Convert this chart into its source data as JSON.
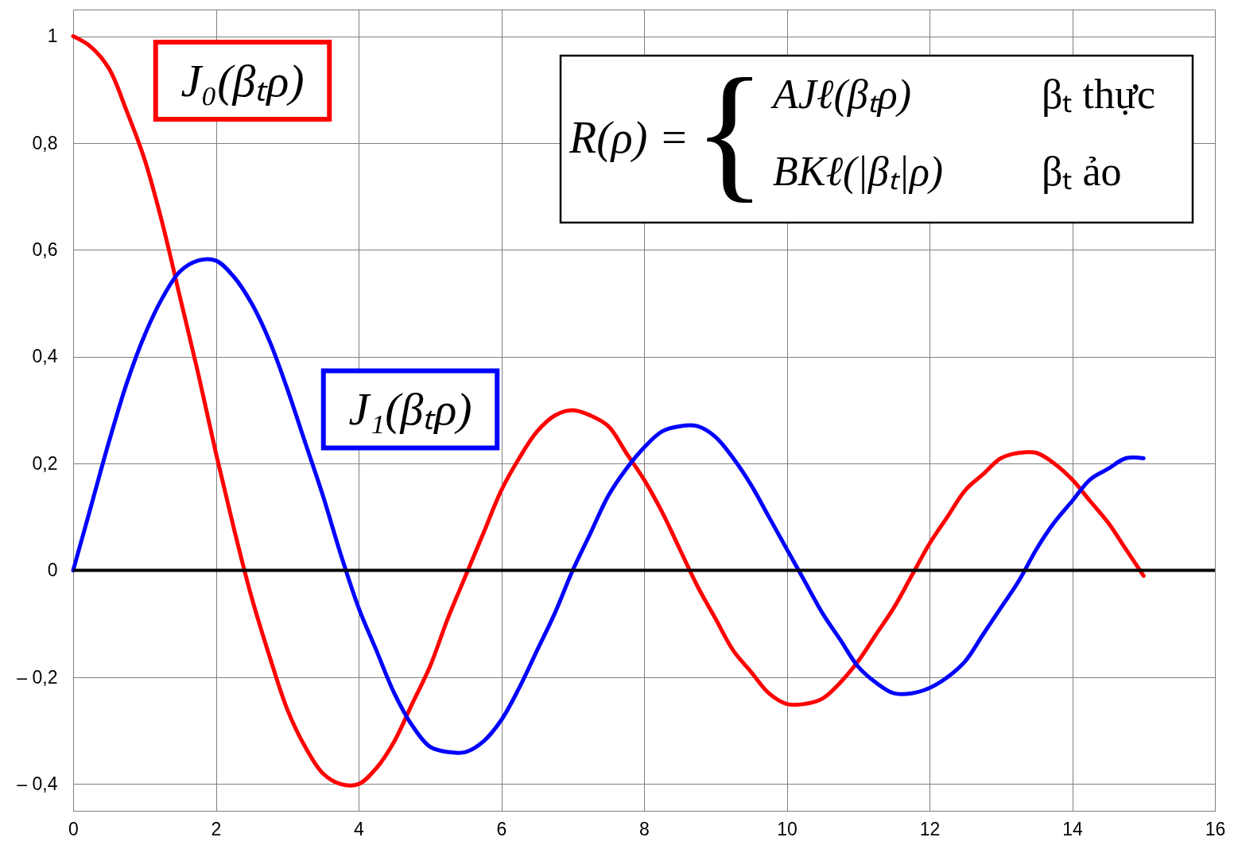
{
  "chart_data": {
    "type": "line",
    "x": [
      0,
      0.25,
      0.5,
      0.75,
      1,
      1.25,
      1.5,
      1.75,
      2,
      2.25,
      2.5,
      2.75,
      3,
      3.25,
      3.5,
      3.75,
      4,
      4.25,
      4.5,
      4.75,
      5,
      5.25,
      5.5,
      5.75,
      6,
      6.25,
      6.5,
      6.75,
      7,
      7.25,
      7.5,
      7.75,
      8,
      8.25,
      8.5,
      8.75,
      9,
      9.25,
      9.5,
      9.75,
      10,
      10.25,
      10.5,
      10.75,
      11,
      11.25,
      11.5,
      11.75,
      12,
      12.25,
      12.5,
      12.75,
      13,
      13.25,
      13.5,
      13.75,
      14,
      14.25,
      14.5,
      14.75,
      15
    ],
    "series": [
      {
        "name": "J₀(βₜρ)",
        "color": "#ff0000",
        "values": [
          1.0,
          0.98,
          0.94,
          0.86,
          0.77,
          0.65,
          0.51,
          0.37,
          0.22,
          0.08,
          -0.05,
          -0.16,
          -0.26,
          -0.33,
          -0.38,
          -0.4,
          -0.4,
          -0.37,
          -0.32,
          -0.25,
          -0.18,
          -0.09,
          -0.01,
          0.07,
          0.15,
          0.21,
          0.26,
          0.29,
          0.3,
          0.29,
          0.27,
          0.22,
          0.17,
          0.11,
          0.04,
          -0.03,
          -0.09,
          -0.15,
          -0.19,
          -0.23,
          -0.25,
          -0.25,
          -0.24,
          -0.21,
          -0.17,
          -0.12,
          -0.07,
          -0.01,
          0.05,
          0.1,
          0.15,
          0.18,
          0.21,
          0.22,
          0.22,
          0.2,
          0.17,
          0.13,
          0.09,
          0.04,
          -0.01
        ]
      },
      {
        "name": "J₁(βₜρ)",
        "color": "#0000ff",
        "values": [
          0.0,
          0.12,
          0.24,
          0.35,
          0.44,
          0.51,
          0.56,
          0.58,
          0.58,
          0.55,
          0.5,
          0.43,
          0.34,
          0.24,
          0.14,
          0.03,
          -0.07,
          -0.15,
          -0.23,
          -0.29,
          -0.33,
          -0.34,
          -0.34,
          -0.32,
          -0.28,
          -0.22,
          -0.15,
          -0.08,
          0.0,
          0.07,
          0.14,
          0.19,
          0.23,
          0.26,
          0.27,
          0.27,
          0.25,
          0.21,
          0.16,
          0.1,
          0.04,
          -0.02,
          -0.08,
          -0.13,
          -0.18,
          -0.21,
          -0.23,
          -0.23,
          -0.22,
          -0.2,
          -0.17,
          -0.12,
          -0.07,
          -0.02,
          0.04,
          0.09,
          0.13,
          0.17,
          0.19,
          0.21,
          0.21
        ]
      }
    ],
    "xlim": [
      0,
      16
    ],
    "ylim": [
      -0.45,
      1.05
    ],
    "xticks": [
      0,
      2,
      4,
      6,
      8,
      10,
      12,
      14,
      16
    ],
    "yticks": [
      {
        "value": -0.4,
        "label": "– 0,4"
      },
      {
        "value": -0.2,
        "label": "– 0,2"
      },
      0,
      {
        "value": 0.2,
        "label": "0,2"
      },
      {
        "value": 0.4,
        "label": "0,4"
      },
      {
        "value": 0.6,
        "label": "0,6"
      },
      {
        "value": 0.8,
        "label": "0,8"
      },
      1
    ],
    "grid": true,
    "legend": false,
    "ref_lines": [
      {
        "axis": "y",
        "value": 0,
        "color": "#000000"
      }
    ],
    "annotations": [
      "R(ρ) =",
      "{",
      "AJℓ(βₜρ)",
      "βₜ thực",
      "BKℓ(|βₜ|ρ)",
      "βₜ ảo"
    ]
  }
}
